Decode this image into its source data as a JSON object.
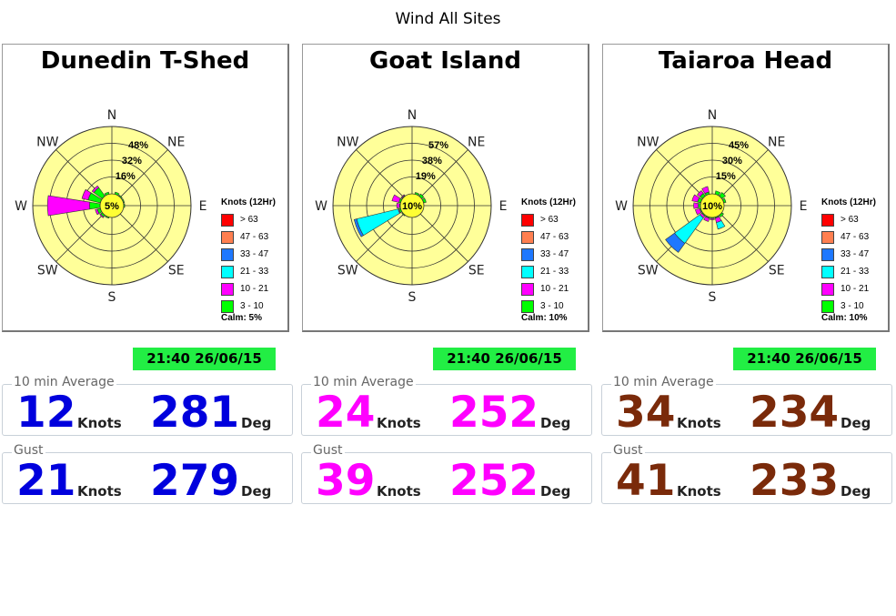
{
  "page_title": "Wind All Sites",
  "legend": {
    "title": "Knots (12Hr)",
    "bins": [
      {
        "label": "> 63",
        "color": "#ff0000"
      },
      {
        "label": "47 - 63",
        "color": "#ff7f50"
      },
      {
        "label": "33 - 47",
        "color": "#1e78ff"
      },
      {
        "label": "21 - 33",
        "color": "#00ffff"
      },
      {
        "label": "10 - 21",
        "color": "#ff00ff"
      },
      {
        "label": "3 - 10",
        "color": "#00ff00"
      }
    ]
  },
  "rose_colors": {
    "background": "#ffff99",
    "calm_fill": "#ffff33",
    "grid": "#333333"
  },
  "directions": [
    "N",
    "NE",
    "E",
    "SE",
    "S",
    "SW",
    "W",
    "NW"
  ],
  "units": {
    "speed": "Knots",
    "direction": "Deg"
  },
  "labels": {
    "average": "10 min Average",
    "gust": "Gust"
  },
  "sites": [
    {
      "name": "Dunedin T-Shed",
      "calm_text": "Calm: 5%",
      "timestamp": "21:40 26/06/15",
      "value_color": "#0000dd",
      "average": {
        "speed": "12",
        "direction": "281"
      },
      "gust": {
        "speed": "21",
        "direction": "279"
      }
    },
    {
      "name": "Goat Island",
      "calm_text": "Calm: 10%",
      "timestamp": "21:40 26/06/15",
      "value_color": "#ff00ff",
      "average": {
        "speed": "24",
        "direction": "252"
      },
      "gust": {
        "speed": "39",
        "direction": "252"
      }
    },
    {
      "name": "Taiaroa Head",
      "calm_text": "Calm: 10%",
      "timestamp": "21:40 26/06/15",
      "value_color": "#7a2a0a",
      "average": {
        "speed": "34",
        "direction": "234"
      },
      "gust": {
        "speed": "41",
        "direction": "233"
      }
    }
  ],
  "chart_data": [
    {
      "type": "windrose",
      "title": "Dunedin T-Shed",
      "calm_percent": 5,
      "ring_labels": [
        "5%",
        "16%",
        "32%",
        "48%"
      ],
      "ring_values": [
        16,
        32,
        48
      ],
      "rmax": 64,
      "bins": [
        "3 - 10",
        "10 - 21",
        "21 - 33",
        "33 - 47",
        "47 - 63",
        "> 63"
      ],
      "sectors": [
        {
          "dir": 22.5,
          "values": [
            2,
            0,
            0,
            0,
            0,
            0
          ]
        },
        {
          "dir": 45,
          "values": [
            1,
            0,
            0,
            0,
            0,
            0
          ]
        },
        {
          "dir": 67.5,
          "values": [
            1,
            0,
            0,
            0,
            0,
            0
          ]
        },
        {
          "dir": 90,
          "values": [
            1,
            0,
            0,
            0,
            0,
            0
          ]
        },
        {
          "dir": 202.5,
          "values": [
            1,
            0,
            0,
            0,
            0,
            0
          ]
        },
        {
          "dir": 225,
          "values": [
            2,
            1,
            0,
            0,
            0,
            0
          ]
        },
        {
          "dir": 247.5,
          "values": [
            3,
            2,
            0,
            0,
            0,
            0
          ]
        },
        {
          "dir": 270,
          "values": [
            10,
            40,
            0,
            0,
            0,
            0
          ]
        },
        {
          "dir": 292.5,
          "values": [
            12,
            6,
            0,
            0,
            0,
            0
          ]
        },
        {
          "dir": 315,
          "values": [
            10,
            2,
            0,
            0,
            0,
            0
          ]
        },
        {
          "dir": 337.5,
          "values": [
            2,
            0,
            0,
            0,
            0,
            0
          ]
        }
      ]
    },
    {
      "type": "windrose",
      "title": "Goat Island",
      "calm_percent": 10,
      "ring_labels": [
        "10%",
        "19%",
        "38%",
        "57%"
      ],
      "ring_values": [
        19,
        38,
        57
      ],
      "rmax": 76,
      "bins": [
        "3 - 10",
        "10 - 21",
        "21 - 33",
        "33 - 47",
        "47 - 63",
        "> 63"
      ],
      "sectors": [
        {
          "dir": 22.5,
          "values": [
            2,
            0,
            0,
            0,
            0,
            0
          ]
        },
        {
          "dir": 45,
          "values": [
            3,
            0,
            0,
            0,
            0,
            0
          ]
        },
        {
          "dir": 67.5,
          "values": [
            3,
            0,
            0,
            0,
            0,
            0
          ]
        },
        {
          "dir": 225,
          "values": [
            1,
            0,
            0,
            0,
            0,
            0
          ]
        },
        {
          "dir": 247.5,
          "values": [
            2,
            1,
            48,
            3,
            0,
            0
          ]
        },
        {
          "dir": 270,
          "values": [
            1,
            3,
            0,
            0,
            0,
            0
          ]
        },
        {
          "dir": 292.5,
          "values": [
            2,
            8,
            0,
            0,
            0,
            0
          ]
        },
        {
          "dir": 315,
          "values": [
            1,
            1,
            0,
            0,
            0,
            0
          ]
        }
      ]
    },
    {
      "type": "windrose",
      "title": "Taiaroa Head",
      "calm_percent": 10,
      "ring_labels": [
        "10%",
        "15%",
        "30%",
        "45%"
      ],
      "ring_values": [
        15,
        30,
        45
      ],
      "rmax": 60,
      "bins": [
        "3 - 10",
        "10 - 21",
        "21 - 33",
        "33 - 47",
        "47 - 63",
        "> 63"
      ],
      "sectors": [
        {
          "dir": 22.5,
          "values": [
            3,
            0,
            0,
            0,
            0,
            0
          ]
        },
        {
          "dir": 45,
          "values": [
            4,
            0,
            0,
            0,
            0,
            0
          ]
        },
        {
          "dir": 67.5,
          "values": [
            2,
            0,
            0,
            0,
            0,
            0
          ]
        },
        {
          "dir": 135,
          "values": [
            2,
            0,
            0,
            0,
            0,
            0
          ]
        },
        {
          "dir": 157.5,
          "values": [
            1,
            4,
            6,
            0,
            0,
            0
          ]
        },
        {
          "dir": 180,
          "values": [
            1,
            1,
            0,
            0,
            0,
            0
          ]
        },
        {
          "dir": 202.5,
          "values": [
            1,
            3,
            0,
            0,
            0,
            0
          ]
        },
        {
          "dir": 225,
          "values": [
            1,
            2,
            28,
            10,
            0,
            0
          ]
        },
        {
          "dir": 247.5,
          "values": [
            1,
            4,
            0,
            0,
            0,
            0
          ]
        },
        {
          "dir": 270,
          "values": [
            2,
            4,
            0,
            0,
            0,
            0
          ]
        },
        {
          "dir": 292.5,
          "values": [
            3,
            5,
            0,
            0,
            0,
            0
          ]
        },
        {
          "dir": 315,
          "values": [
            3,
            3,
            0,
            0,
            0,
            0
          ]
        },
        {
          "dir": 337.5,
          "values": [
            2,
            5,
            0,
            0,
            0,
            0
          ]
        }
      ]
    }
  ]
}
